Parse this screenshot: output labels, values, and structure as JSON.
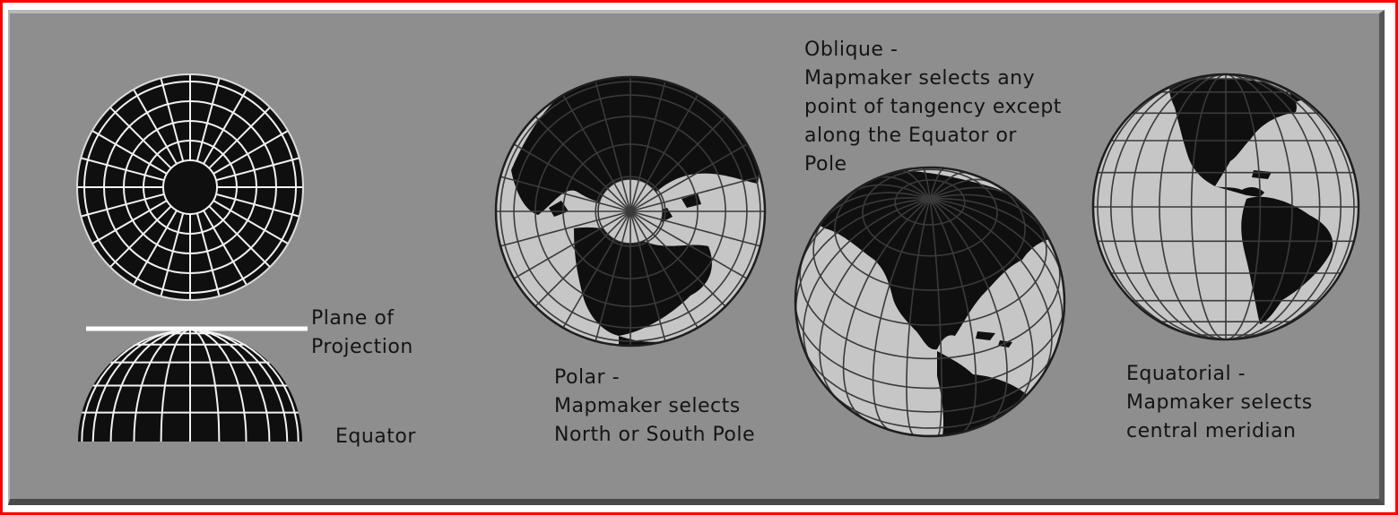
{
  "colors": {
    "frame": "#ff0000",
    "panel": "#8e8e8e",
    "land": "#0f0f0f",
    "ocean": "#c6c6c6",
    "grid": "#f2f2f2",
    "plane": "#ffffff",
    "text": "#141414"
  },
  "figures": [
    {
      "name": "plane-of-projection-diagram",
      "projection": "polar top view and equatorial hemisphere cross-section"
    },
    {
      "name": "polar-globe",
      "projection": "polar azimuthal"
    },
    {
      "name": "oblique-globe",
      "projection": "oblique azimuthal"
    },
    {
      "name": "equatorial-globe",
      "projection": "equatorial azimuthal"
    }
  ],
  "labels": {
    "plane_of_projection": [
      "Plane of",
      "Projection"
    ],
    "equator": "Equator",
    "polar": [
      "Polar -",
      "Mapmaker selects",
      "North or South Pole"
    ],
    "oblique": [
      "Oblique -",
      "Mapmaker selects any",
      "point of tangency except",
      "along the Equator or",
      "Pole"
    ],
    "equatorial": [
      "Equatorial -",
      "Mapmaker selects",
      "central meridian"
    ]
  }
}
